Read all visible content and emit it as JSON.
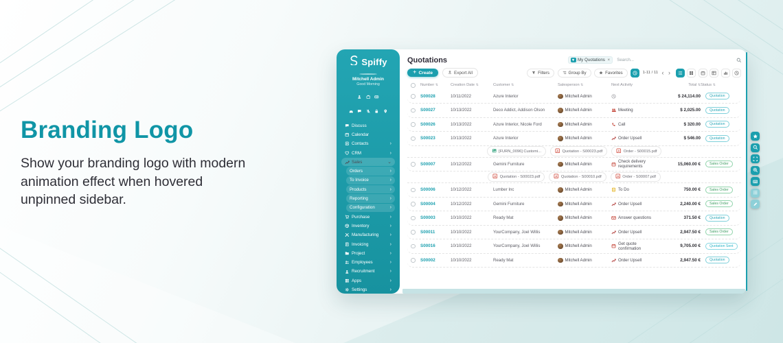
{
  "hero": {
    "title": "Branding Logo",
    "subtitle": "Show your branding logo with modern animation effect when hovered unpinned sidebar."
  },
  "colors": {
    "accent": "#1b9fae",
    "green": "#3f9e63",
    "cyan": "#2ab4c7",
    "red": "#c0392b",
    "yellow": "#dfa800",
    "gray": "#9a9aa0"
  },
  "app": {
    "brand": "Spiffy",
    "user": {
      "name": "Mitchell Admin",
      "greeting": "Good Morning"
    },
    "sidebar": {
      "utility_icons": [
        [
          "person",
          "briefcase",
          "keyboard"
        ],
        [
          "car",
          "chat",
          "mute",
          "lock",
          "pin"
        ]
      ],
      "items": [
        {
          "label": "Discuss",
          "icon": "chat",
          "arrow": "",
          "style": "top"
        },
        {
          "label": "Calendar",
          "icon": "calendar",
          "arrow": "",
          "style": "top"
        },
        {
          "label": "Contacts",
          "icon": "book",
          "arrow": "right",
          "style": "top"
        },
        {
          "label": "CRM",
          "icon": "crm",
          "arrow": "right",
          "style": "top"
        },
        {
          "label": "Sales",
          "icon": "upsell",
          "arrow": "down",
          "style": "active"
        },
        {
          "label": "Orders",
          "icon": "",
          "arrow": "right",
          "style": "sub"
        },
        {
          "label": "To Invoice",
          "icon": "",
          "arrow": "right",
          "style": "sub"
        },
        {
          "label": "Products",
          "icon": "",
          "arrow": "right",
          "style": "sub"
        },
        {
          "label": "Reporting",
          "icon": "",
          "arrow": "right",
          "style": "sub"
        },
        {
          "label": "Configuration",
          "icon": "",
          "arrow": "right",
          "style": "sub"
        },
        {
          "label": "Purchase",
          "icon": "cart",
          "arrow": "right",
          "style": "top"
        },
        {
          "label": "Inventory",
          "icon": "box",
          "arrow": "right",
          "style": "top"
        },
        {
          "label": "Manufacturing",
          "icon": "scissors",
          "arrow": "right",
          "style": "top"
        },
        {
          "label": "Invoicing",
          "icon": "invoice",
          "arrow": "right",
          "style": "top"
        },
        {
          "label": "Project",
          "icon": "folder",
          "arrow": "right",
          "style": "top"
        },
        {
          "label": "Employees",
          "icon": "people",
          "arrow": "right",
          "style": "top"
        },
        {
          "label": "Recruitment",
          "icon": "person",
          "arrow": "right",
          "style": "top"
        },
        {
          "label": "Apps",
          "icon": "apps",
          "arrow": "right",
          "style": "top"
        },
        {
          "label": "Settings",
          "icon": "gear",
          "arrow": "right",
          "style": "top"
        }
      ]
    },
    "topbar": {
      "page_title": "Quotations",
      "create_label": "Create",
      "export_label": "Export All",
      "filter_chip": "My Quotations",
      "filter_chip_remove": "×",
      "search_placeholder": "Search...",
      "filters_label": "Filters",
      "group_by_label": "Group By",
      "favorites_label": "Favorites",
      "pagination": "1-11 / 11",
      "prev": "‹",
      "next": "›",
      "views": [
        "list",
        "kanban",
        "calendar",
        "pivot",
        "graph",
        "clock"
      ]
    },
    "table": {
      "columns": [
        "Number",
        "Creation Date",
        "Customer",
        "Salesperson",
        "Next Activity",
        "Total",
        "Status"
      ],
      "rows": [
        {
          "number": "S00028",
          "date": "10/11/2022",
          "customer": "Azure Interior",
          "salesperson": "Mitchell Admin",
          "activity": {
            "icon": "clock",
            "label": "",
            "color": "#9a9aa0"
          },
          "total": "$ 24,114.00",
          "status": {
            "label": "Quotation",
            "type": "quotation"
          }
        },
        {
          "number": "S00027",
          "date": "10/13/2022",
          "customer": "Deco Addict, Addison Olson",
          "salesperson": "Mitchell Admin",
          "activity": {
            "icon": "meeting",
            "label": "Meeting",
            "color": "#c0392b"
          },
          "total": "$ 2,025.00",
          "status": {
            "label": "Quotation",
            "type": "quotation"
          }
        },
        {
          "number": "S00026",
          "date": "10/13/2022",
          "customer": "Azure Interior, Nicole Ford",
          "salesperson": "Mitchell Admin",
          "activity": {
            "icon": "phone",
            "label": "Call",
            "color": "#c0392b"
          },
          "total": "$ 320.00",
          "status": {
            "label": "Quotation",
            "type": "quotation"
          }
        },
        {
          "number": "S00023",
          "date": "10/13/2022",
          "customer": "Azure Interior",
          "salesperson": "Mitchell Admin",
          "activity": {
            "icon": "upsell",
            "label": "Order Upsell",
            "color": "#b03a36"
          },
          "total": "$ 546.00",
          "status": {
            "label": "Quotation",
            "type": "quotation"
          },
          "attachments": [
            {
              "icon": "image",
              "label": "[FURN_0096] Customi..."
            },
            {
              "icon": "pdf",
              "label": "Quotation - S00023.pdf"
            },
            {
              "icon": "pdf",
              "label": "Order - S00015.pdf"
            }
          ]
        },
        {
          "number": "S00007",
          "date": "10/12/2022",
          "customer": "Gemini Furniture",
          "salesperson": "Mitchell Admin",
          "activity": {
            "icon": "calendar",
            "label": "Check delivery requirements",
            "color": "#c0392b"
          },
          "total": "15,060.00 €",
          "status": {
            "label": "Sales Order",
            "type": "sales_order"
          },
          "attachments": [
            {
              "icon": "pdf",
              "label": "Quotation - S00023.pdf"
            },
            {
              "icon": "pdf",
              "label": "Quotation - S00010.pdf"
            },
            {
              "icon": "pdf",
              "label": "Order - S00007.pdf"
            }
          ]
        },
        {
          "number": "S00006",
          "date": "10/12/2022",
          "customer": "Lumber Inc",
          "salesperson": "Mitchell Admin",
          "activity": {
            "icon": "todo",
            "label": "To Do",
            "color": "#dfa800"
          },
          "total": "750.00 €",
          "status": {
            "label": "Sales Order",
            "type": "sales_order"
          }
        },
        {
          "number": "S00004",
          "date": "10/12/2022",
          "customer": "Gemini Furniture",
          "salesperson": "Mitchell Admin",
          "activity": {
            "icon": "upsell",
            "label": "Order Upsell",
            "color": "#b03a36"
          },
          "total": "2,240.00 €",
          "status": {
            "label": "Sales Order",
            "type": "sales_order"
          }
        },
        {
          "number": "S00003",
          "date": "10/10/2022",
          "customer": "Ready Mat",
          "salesperson": "Mitchell Admin",
          "activity": {
            "icon": "email",
            "label": "Answer questions",
            "color": "#c0392b"
          },
          "total": "371.50 €",
          "status": {
            "label": "Quotation",
            "type": "quotation"
          }
        },
        {
          "number": "S00011",
          "date": "10/10/2022",
          "customer": "YourCompany, Joel Willis",
          "salesperson": "Mitchell Admin",
          "activity": {
            "icon": "upsell",
            "label": "Order Upsell",
            "color": "#b03a36"
          },
          "total": "2,947.50 €",
          "status": {
            "label": "Sales Order",
            "type": "sales_order"
          }
        },
        {
          "number": "S00016",
          "date": "10/10/2022",
          "customer": "YourCompany, Joel Willis",
          "salesperson": "Mitchell Admin",
          "activity": {
            "icon": "calendar",
            "label": "Get quote confirmation",
            "color": "#c0392b"
          },
          "total": "9,705.00 €",
          "status": {
            "label": "Quotation Sent",
            "type": "quotation_sent"
          }
        },
        {
          "number": "S00002",
          "date": "10/10/2022",
          "customer": "Ready Mat",
          "salesperson": "Mitchell Admin",
          "activity": {
            "icon": "upsell",
            "label": "Order Upsell",
            "color": "#b03a36"
          },
          "total": "2,947.50 €",
          "status": {
            "label": "Quotation",
            "type": "quotation"
          }
        }
      ]
    },
    "right_rail": [
      {
        "icon": "star",
        "light": false
      },
      {
        "icon": "search",
        "light": false
      },
      {
        "icon": "expand",
        "light": false
      },
      {
        "icon": "zoom",
        "light": false
      },
      {
        "icon": "keyboard",
        "light": false
      },
      {
        "icon": "list",
        "light": true
      },
      {
        "icon": "pencil",
        "light": true
      }
    ]
  }
}
